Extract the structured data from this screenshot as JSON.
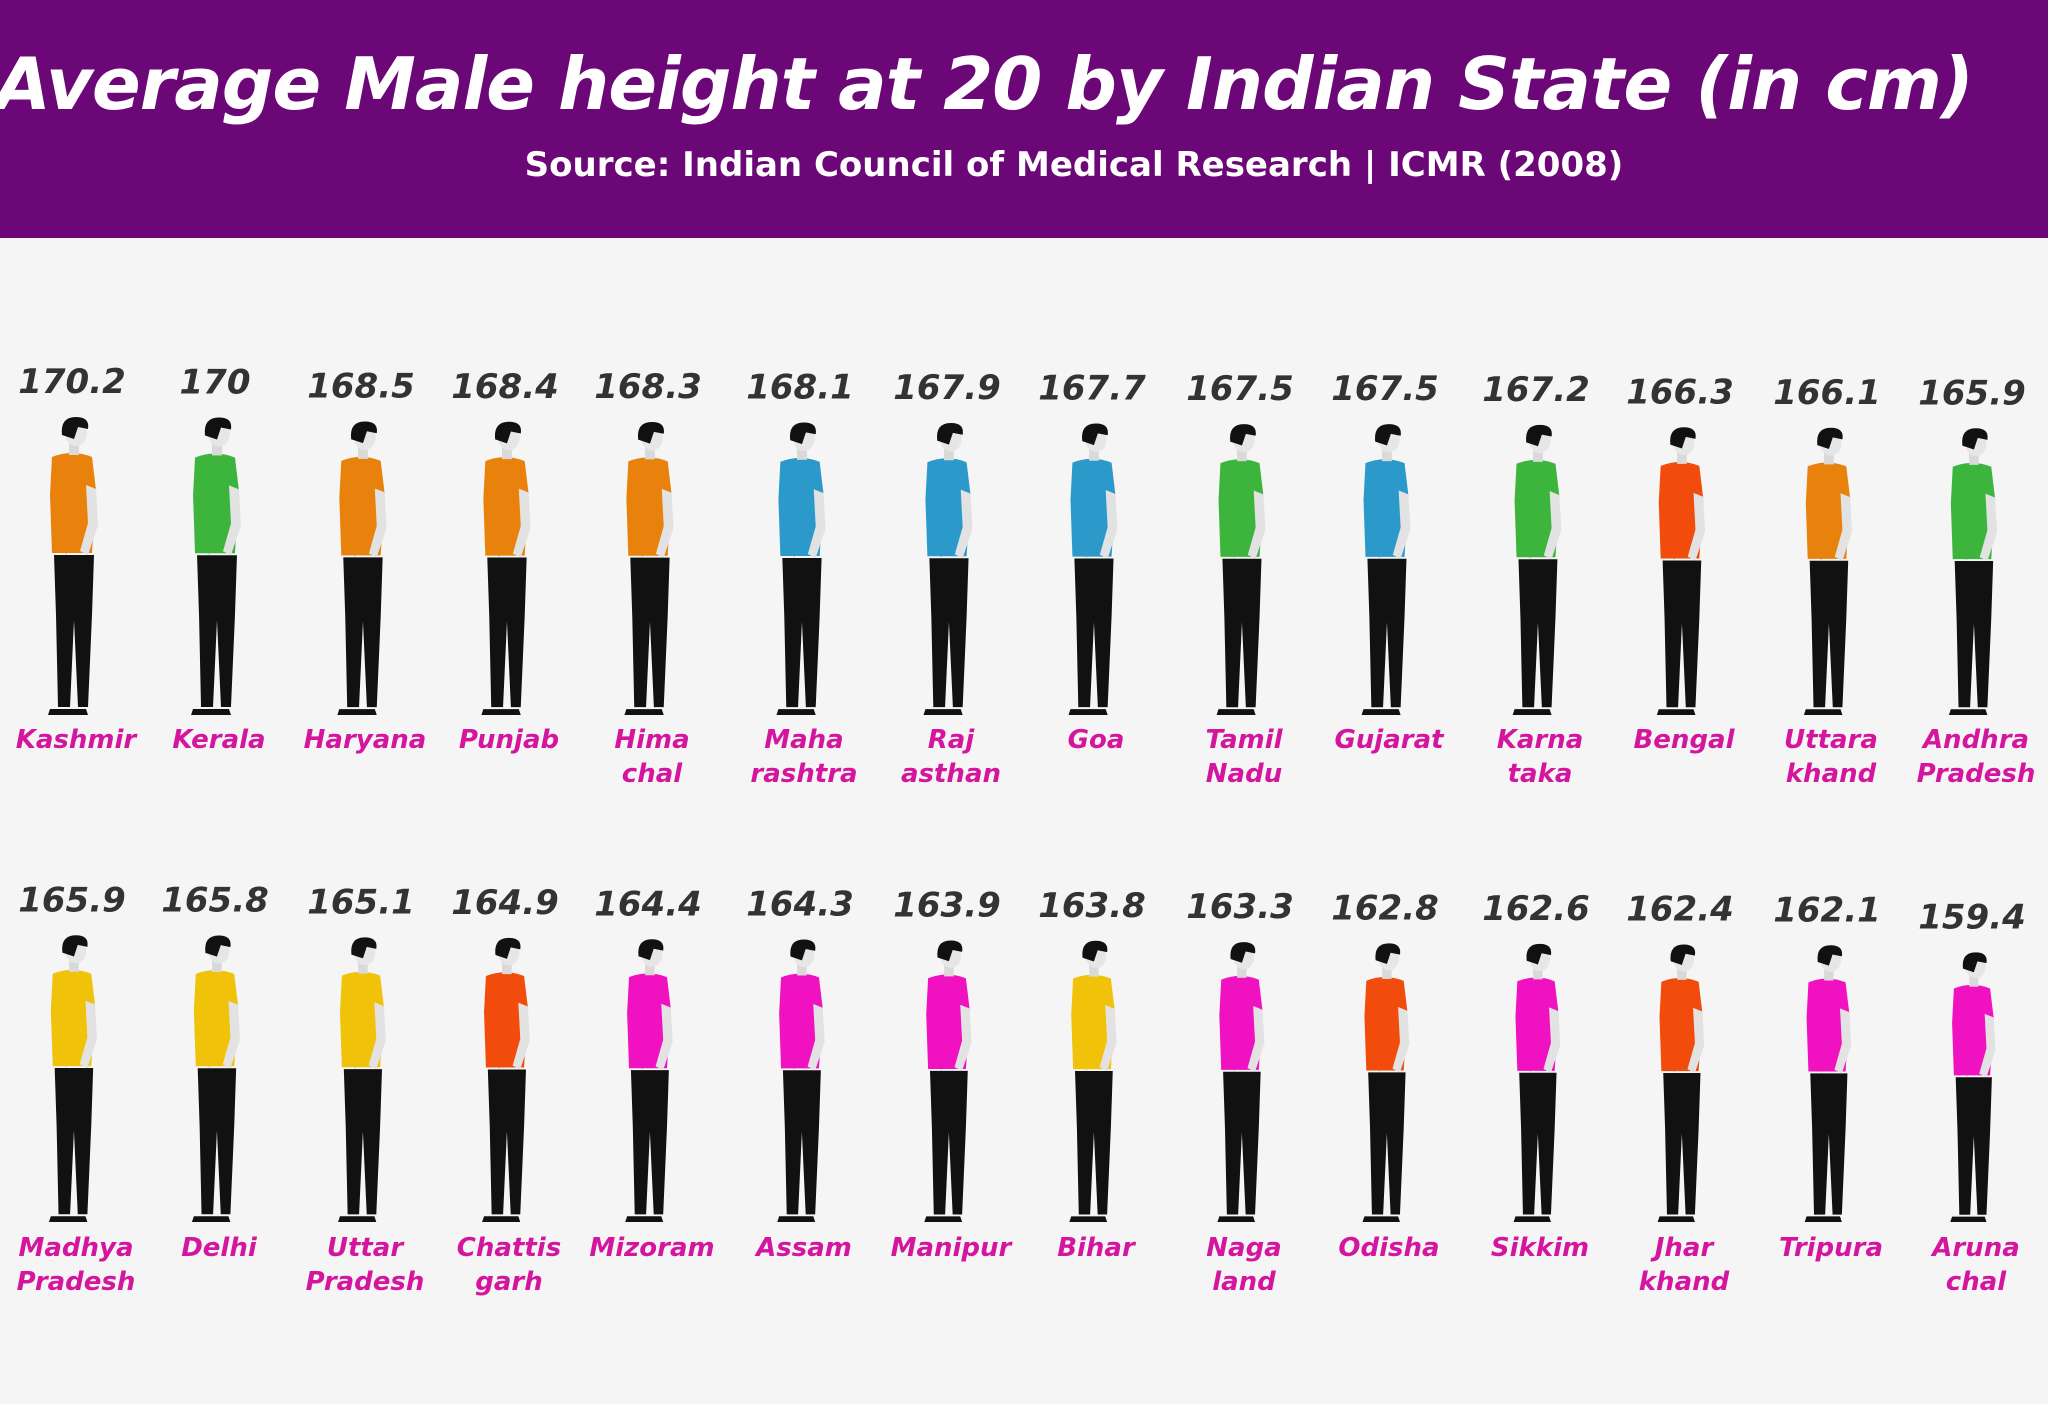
{
  "header": {
    "title": "Average Male height at 20 by Indian State (in cm)",
    "subtitle": "Source: Indian Council of Medical Research | ICMR  (2008)"
  },
  "colors": {
    "header_bg": "#6b0776",
    "label": "#d4169f",
    "value": "#333333",
    "shirt_orange": "#e8820c",
    "shirt_green": "#3db53d",
    "shirt_blue": "#2b9acb",
    "shirt_red": "#f24c0c",
    "shirt_yellow": "#f0c20a",
    "shirt_magenta": "#f012c0"
  },
  "chart_data": {
    "type": "pictograph",
    "title": "Average Male height at 20 by Indian State (in cm)",
    "unit": "cm",
    "rows": [
      [
        {
          "label": [
            "Kashmir"
          ],
          "value": 170.2,
          "shirt": "orange"
        },
        {
          "label": [
            "Kerala"
          ],
          "value": 170,
          "shirt": "green"
        },
        {
          "label": [
            "Haryana"
          ],
          "value": 168.5,
          "shirt": "orange"
        },
        {
          "label": [
            "Punjab"
          ],
          "value": 168.4,
          "shirt": "orange"
        },
        {
          "label": [
            "Hima",
            "chal"
          ],
          "value": 168.3,
          "shirt": "orange"
        },
        {
          "label": [
            "Maha",
            "rashtra"
          ],
          "value": 168.1,
          "shirt": "blue"
        },
        {
          "label": [
            "Raj",
            "asthan"
          ],
          "value": 167.9,
          "shirt": "blue"
        },
        {
          "label": [
            "Goa"
          ],
          "value": 167.7,
          "shirt": "blue"
        },
        {
          "label": [
            "Tamil",
            "Nadu"
          ],
          "value": 167.5,
          "shirt": "green"
        },
        {
          "label": [
            "Gujarat"
          ],
          "value": 167.5,
          "shirt": "blue"
        },
        {
          "label": [
            "Karna",
            "taka"
          ],
          "value": 167.2,
          "shirt": "green"
        },
        {
          "label": [
            "Bengal"
          ],
          "value": 166.3,
          "shirt": "red"
        },
        {
          "label": [
            "Uttara",
            "khand"
          ],
          "value": 166.1,
          "shirt": "orange"
        },
        {
          "label": [
            "Andhra",
            "Pradesh"
          ],
          "value": 165.9,
          "shirt": "green"
        }
      ],
      [
        {
          "label": [
            "Madhya",
            "Pradesh"
          ],
          "value": 165.9,
          "shirt": "yellow"
        },
        {
          "label": [
            "Delhi"
          ],
          "value": 165.8,
          "shirt": "yellow"
        },
        {
          "label": [
            "Uttar",
            "Pradesh"
          ],
          "value": 165.1,
          "shirt": "yellow"
        },
        {
          "label": [
            "Chattis",
            "garh"
          ],
          "value": 164.9,
          "shirt": "red"
        },
        {
          "label": [
            "Mizoram"
          ],
          "value": 164.4,
          "shirt": "magenta"
        },
        {
          "label": [
            "Assam"
          ],
          "value": 164.3,
          "shirt": "magenta"
        },
        {
          "label": [
            "Manipur"
          ],
          "value": 163.9,
          "shirt": "magenta"
        },
        {
          "label": [
            "Bihar"
          ],
          "value": 163.8,
          "shirt": "yellow"
        },
        {
          "label": [
            "Naga",
            "land"
          ],
          "value": 163.3,
          "shirt": "magenta"
        },
        {
          "label": [
            "Odisha"
          ],
          "value": 162.8,
          "shirt": "red"
        },
        {
          "label": [
            "Sikkim"
          ],
          "value": 162.6,
          "shirt": "magenta"
        },
        {
          "label": [
            "Jhar",
            "khand"
          ],
          "value": 162.4,
          "shirt": "red"
        },
        {
          "label": [
            "Tripura"
          ],
          "value": 162.1,
          "shirt": "magenta"
        },
        {
          "label": [
            "Aruna",
            "chal"
          ],
          "value": 159.4,
          "shirt": "magenta"
        }
      ]
    ]
  }
}
